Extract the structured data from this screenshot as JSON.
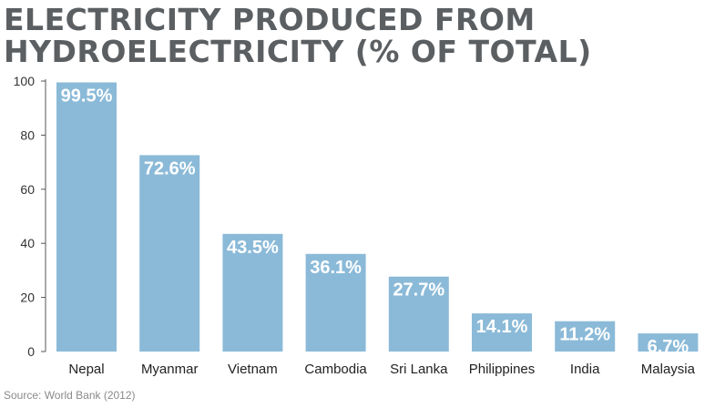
{
  "chart_data": {
    "type": "bar",
    "title_lines": [
      "ELECTRICITY PRODUCED FROM",
      "HYDROELECTRICITY (% OF TOTAL)"
    ],
    "categories": [
      "Nepal",
      "Myanmar",
      "Vietnam",
      "Cambodia",
      "Sri Lanka",
      "Philippines",
      "India",
      "Malaysia"
    ],
    "values": [
      99.5,
      72.6,
      43.5,
      36.1,
      27.7,
      14.1,
      11.2,
      6.7
    ],
    "data_labels": [
      "99.5%",
      "72.6%",
      "43.5%",
      "36.1%",
      "27.7%",
      "14.1%",
      "11.2%",
      "6.7%"
    ],
    "yticks": [
      0,
      20,
      40,
      60,
      80,
      100
    ],
    "ylim": [
      0,
      100
    ],
    "xlabel": "",
    "ylabel": "",
    "grid": false,
    "bar_color": "#8bbad8",
    "source": "Source: World Bank (2012)"
  }
}
